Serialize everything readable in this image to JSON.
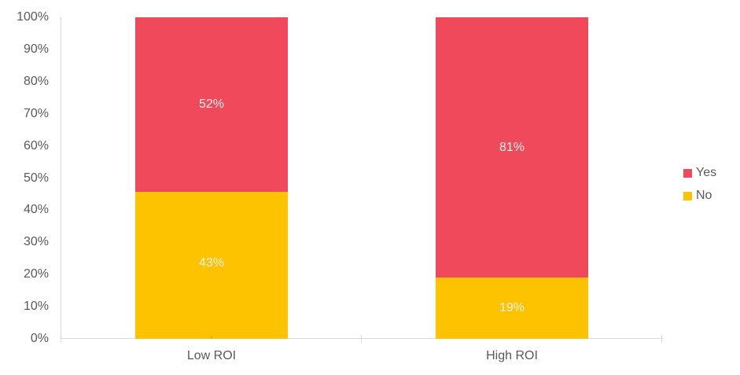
{
  "chart_data": {
    "type": "bar",
    "stacked": true,
    "normalized_to_100_percent": true,
    "title": "",
    "xlabel": "",
    "ylabel": "",
    "grid": false,
    "categories": [
      "Low ROI",
      "High ROI"
    ],
    "series": [
      {
        "name": "Yes",
        "color": "#f0495b",
        "values": [
          52,
          81
        ],
        "labels": [
          "52%",
          "81%"
        ]
      },
      {
        "name": "No",
        "color": "#fdc300",
        "values": [
          43,
          19
        ],
        "labels": [
          "43%",
          "19%"
        ]
      }
    ],
    "extra_segments": [
      {
        "category_index": 0,
        "value": 1,
        "label": "",
        "style": "dotted-pattern",
        "note": "tiny unlabeled dotted strip at bottom of Low ROI bar"
      }
    ],
    "y_ticks": [
      "0%",
      "10%",
      "20%",
      "30%",
      "40%",
      "50%",
      "60%",
      "70%",
      "80%",
      "90%",
      "100%"
    ],
    "ylim": [
      0,
      100
    ],
    "legend": {
      "position": "right",
      "entries": [
        "Yes",
        "No"
      ]
    }
  },
  "colors": {
    "axis_line": "#d9d9d9",
    "tick_text": "#595959",
    "data_label_text": "#f5f1ef",
    "series_yes": "#f0495b",
    "series_no": "#fdc300",
    "background": "#ffffff"
  }
}
